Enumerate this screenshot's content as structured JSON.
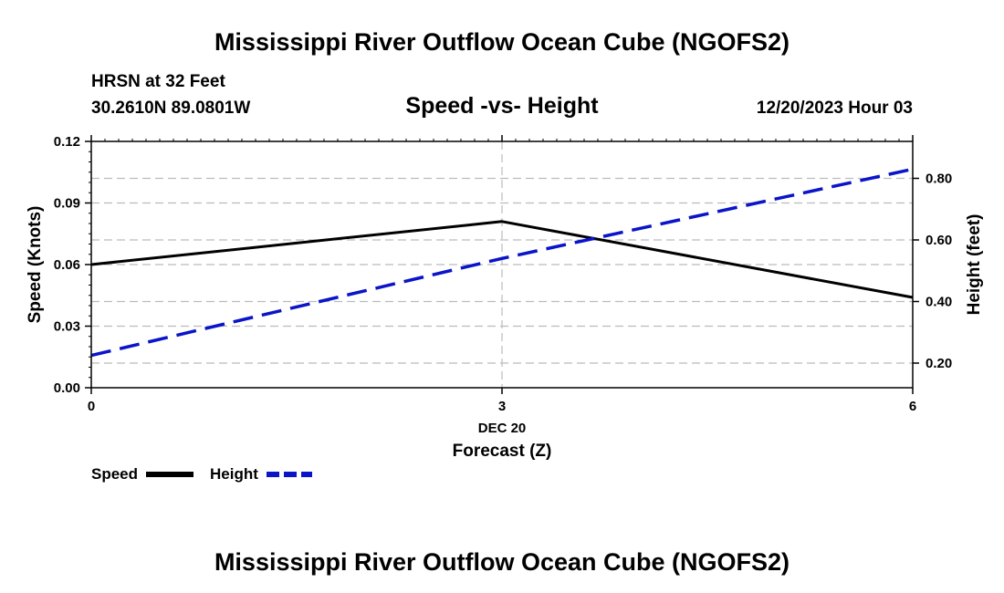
{
  "header": {
    "title": "Mississippi River Outflow Ocean Cube (NGOFS2)",
    "station": "HRSN at 32 Feet",
    "coords": "30.2610N  89.0801W",
    "chart_title": "Speed -vs- Height",
    "datetime": "12/20/2023 Hour 03"
  },
  "footer": {
    "title": "Mississippi River Outflow Ocean Cube (NGOFS2)"
  },
  "colors": {
    "speed": "#000000",
    "height": "#0a14c8",
    "grid": "#bbbbbb"
  },
  "chart_data": {
    "type": "line",
    "title": "Speed -vs- Height",
    "x": [
      0,
      3,
      6
    ],
    "x_ticks": [
      "0",
      "3",
      "6"
    ],
    "x_date_label": "DEC 20",
    "xlabel": "Forecast (Z)",
    "xlim": [
      0,
      6
    ],
    "ylabel": "Speed (Knots)",
    "ylim": [
      0,
      0.12
    ],
    "y_ticks": [
      "0.00",
      "0.03",
      "0.06",
      "0.09",
      "0.12"
    ],
    "y2label": "Height (feet)",
    "y2lim": [
      0.12,
      0.92
    ],
    "y2_ticks": [
      "0.20",
      "0.40",
      "0.60",
      "0.80"
    ],
    "grid": true,
    "series": [
      {
        "name": "Speed",
        "axis": "left",
        "style": "solid",
        "values": [
          0.06,
          0.081,
          0.044
        ]
      },
      {
        "name": "Height",
        "axis": "right",
        "style": "dashed",
        "values": [
          0.225,
          0.54,
          0.83
        ]
      }
    ],
    "legend": [
      "Speed",
      "Height"
    ],
    "legend_position": "bottom-left"
  }
}
